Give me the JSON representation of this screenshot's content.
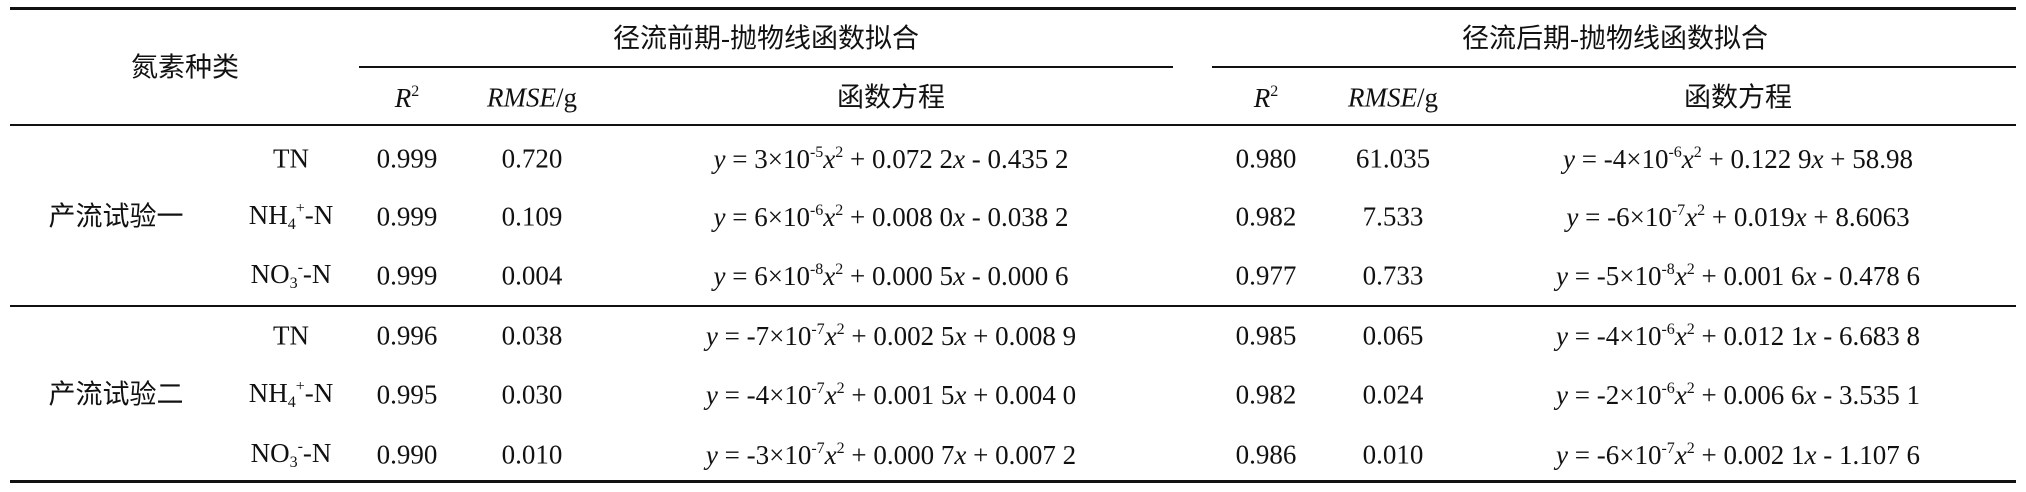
{
  "header": {
    "row_label": "氮素种类",
    "groups": [
      "径流前期-抛物线函数拟合",
      "径流后期-抛物线函数拟合"
    ],
    "columns": [
      [
        {
          "t": "R",
          "s": "i"
        },
        {
          "t": "2",
          "s": "sup"
        }
      ],
      [
        {
          "t": "RMSE",
          "s": "i"
        },
        {
          "t": "/g"
        }
      ],
      "函数方程"
    ]
  },
  "groups": [
    {
      "label": "产流试验一",
      "rows": [
        {
          "species": "TN",
          "early": {
            "r2": "0.999",
            "rmse": "0.720",
            "equation": [
              {
                "t": "y",
                "s": "i"
              },
              {
                "t": " = 3×10"
              },
              {
                "t": "-5",
                "s": "sup"
              },
              {
                "t": "x",
                "s": "i"
              },
              {
                "t": "2",
                "s": "sup"
              },
              {
                "t": " + 0.072 2"
              },
              {
                "t": "x",
                "s": "i"
              },
              {
                "t": " - 0.435 2"
              }
            ]
          },
          "late": {
            "r2": "0.980",
            "rmse": "61.035",
            "equation": [
              {
                "t": "y",
                "s": "i"
              },
              {
                "t": " = -4×10"
              },
              {
                "t": "-6",
                "s": "sup"
              },
              {
                "t": "x",
                "s": "i"
              },
              {
                "t": "2",
                "s": "sup"
              },
              {
                "t": " + 0.122 9"
              },
              {
                "t": "x",
                "s": "i"
              },
              {
                "t": " + 58.98"
              }
            ]
          }
        },
        {
          "species": [
            {
              "t": "NH"
            },
            {
              "t": "4",
              "s": "sub"
            },
            {
              "t": "+",
              "s": "sup"
            },
            {
              "t": "-N"
            }
          ],
          "early": {
            "r2": "0.999",
            "rmse": "0.109",
            "equation": [
              {
                "t": "y",
                "s": "i"
              },
              {
                "t": " = 6×10"
              },
              {
                "t": "-6",
                "s": "sup"
              },
              {
                "t": "x",
                "s": "i"
              },
              {
                "t": "2",
                "s": "sup"
              },
              {
                "t": " + 0.008 0"
              },
              {
                "t": "x",
                "s": "i"
              },
              {
                "t": " - 0.038 2"
              }
            ]
          },
          "late": {
            "r2": "0.982",
            "rmse": "7.533",
            "equation": [
              {
                "t": "y",
                "s": "i"
              },
              {
                "t": " = -6×10"
              },
              {
                "t": "-7",
                "s": "sup"
              },
              {
                "t": "x",
                "s": "i"
              },
              {
                "t": "2",
                "s": "sup"
              },
              {
                "t": " + 0.019"
              },
              {
                "t": "x",
                "s": "i"
              },
              {
                "t": " + 8.6063"
              }
            ]
          }
        },
        {
          "species": [
            {
              "t": "NO"
            },
            {
              "t": "3",
              "s": "sub"
            },
            {
              "t": "-",
              "s": "sup"
            },
            {
              "t": "-N"
            }
          ],
          "early": {
            "r2": "0.999",
            "rmse": "0.004",
            "equation": [
              {
                "t": "y",
                "s": "i"
              },
              {
                "t": " = 6×10"
              },
              {
                "t": "-8",
                "s": "sup"
              },
              {
                "t": "x",
                "s": "i"
              },
              {
                "t": "2",
                "s": "sup"
              },
              {
                "t": " + 0.000 5"
              },
              {
                "t": "x",
                "s": "i"
              },
              {
                "t": " - 0.000 6"
              }
            ]
          },
          "late": {
            "r2": "0.977",
            "rmse": "0.733",
            "equation": [
              {
                "t": "y",
                "s": "i"
              },
              {
                "t": " = -5×10"
              },
              {
                "t": "-8",
                "s": "sup"
              },
              {
                "t": "x",
                "s": "i"
              },
              {
                "t": "2",
                "s": "sup"
              },
              {
                "t": " + 0.001 6"
              },
              {
                "t": "x",
                "s": "i"
              },
              {
                "t": " - 0.478 6"
              }
            ]
          }
        }
      ]
    },
    {
      "label": "产流试验二",
      "rows": [
        {
          "species": "TN",
          "early": {
            "r2": "0.996",
            "rmse": "0.038",
            "equation": [
              {
                "t": "y",
                "s": "i"
              },
              {
                "t": " = -7×10"
              },
              {
                "t": "-7",
                "s": "sup"
              },
              {
                "t": "x",
                "s": "i"
              },
              {
                "t": "2",
                "s": "sup"
              },
              {
                "t": " + 0.002 5"
              },
              {
                "t": "x",
                "s": "i"
              },
              {
                "t": " + 0.008 9"
              }
            ]
          },
          "late": {
            "r2": "0.985",
            "rmse": "0.065",
            "equation": [
              {
                "t": "y",
                "s": "i"
              },
              {
                "t": " = -4×10"
              },
              {
                "t": "-6",
                "s": "sup"
              },
              {
                "t": "x",
                "s": "i"
              },
              {
                "t": "2",
                "s": "sup"
              },
              {
                "t": " + 0.012 1"
              },
              {
                "t": "x",
                "s": "i"
              },
              {
                "t": " - 6.683 8"
              }
            ]
          }
        },
        {
          "species": [
            {
              "t": "NH"
            },
            {
              "t": "4",
              "s": "sub"
            },
            {
              "t": "+",
              "s": "sup"
            },
            {
              "t": "-N"
            }
          ],
          "early": {
            "r2": "0.995",
            "rmse": "0.030",
            "equation": [
              {
                "t": "y",
                "s": "i"
              },
              {
                "t": " = -4×10"
              },
              {
                "t": "-7",
                "s": "sup"
              },
              {
                "t": "x",
                "s": "i"
              },
              {
                "t": "2",
                "s": "sup"
              },
              {
                "t": " + 0.001 5"
              },
              {
                "t": "x",
                "s": "i"
              },
              {
                "t": " + 0.004 0"
              }
            ]
          },
          "late": {
            "r2": "0.982",
            "rmse": "0.024",
            "equation": [
              {
                "t": "y",
                "s": "i"
              },
              {
                "t": " = -2×10"
              },
              {
                "t": "-6",
                "s": "sup"
              },
              {
                "t": "x",
                "s": "i"
              },
              {
                "t": "2",
                "s": "sup"
              },
              {
                "t": " + 0.006 6"
              },
              {
                "t": "x",
                "s": "i"
              },
              {
                "t": " - 3.535 1"
              }
            ]
          }
        },
        {
          "species": [
            {
              "t": "NO"
            },
            {
              "t": "3",
              "s": "sub"
            },
            {
              "t": "-",
              "s": "sup"
            },
            {
              "t": "-N"
            }
          ],
          "early": {
            "r2": "0.990",
            "rmse": "0.010",
            "equation": [
              {
                "t": "y",
                "s": "i"
              },
              {
                "t": " = -3×10"
              },
              {
                "t": "-7",
                "s": "sup"
              },
              {
                "t": "x",
                "s": "i"
              },
              {
                "t": "2",
                "s": "sup"
              },
              {
                "t": " + 0.000 7"
              },
              {
                "t": "x",
                "s": "i"
              },
              {
                "t": " + 0.007 2"
              }
            ]
          },
          "late": {
            "r2": "0.986",
            "rmse": "0.010",
            "equation": [
              {
                "t": "y",
                "s": "i"
              },
              {
                "t": " = -6×10"
              },
              {
                "t": "-7",
                "s": "sup"
              },
              {
                "t": "x",
                "s": "i"
              },
              {
                "t": "2",
                "s": "sup"
              },
              {
                "t": " + 0.002 1"
              },
              {
                "t": "x",
                "s": "i"
              },
              {
                "t": " - 1.107 6"
              }
            ]
          }
        }
      ]
    }
  ]
}
